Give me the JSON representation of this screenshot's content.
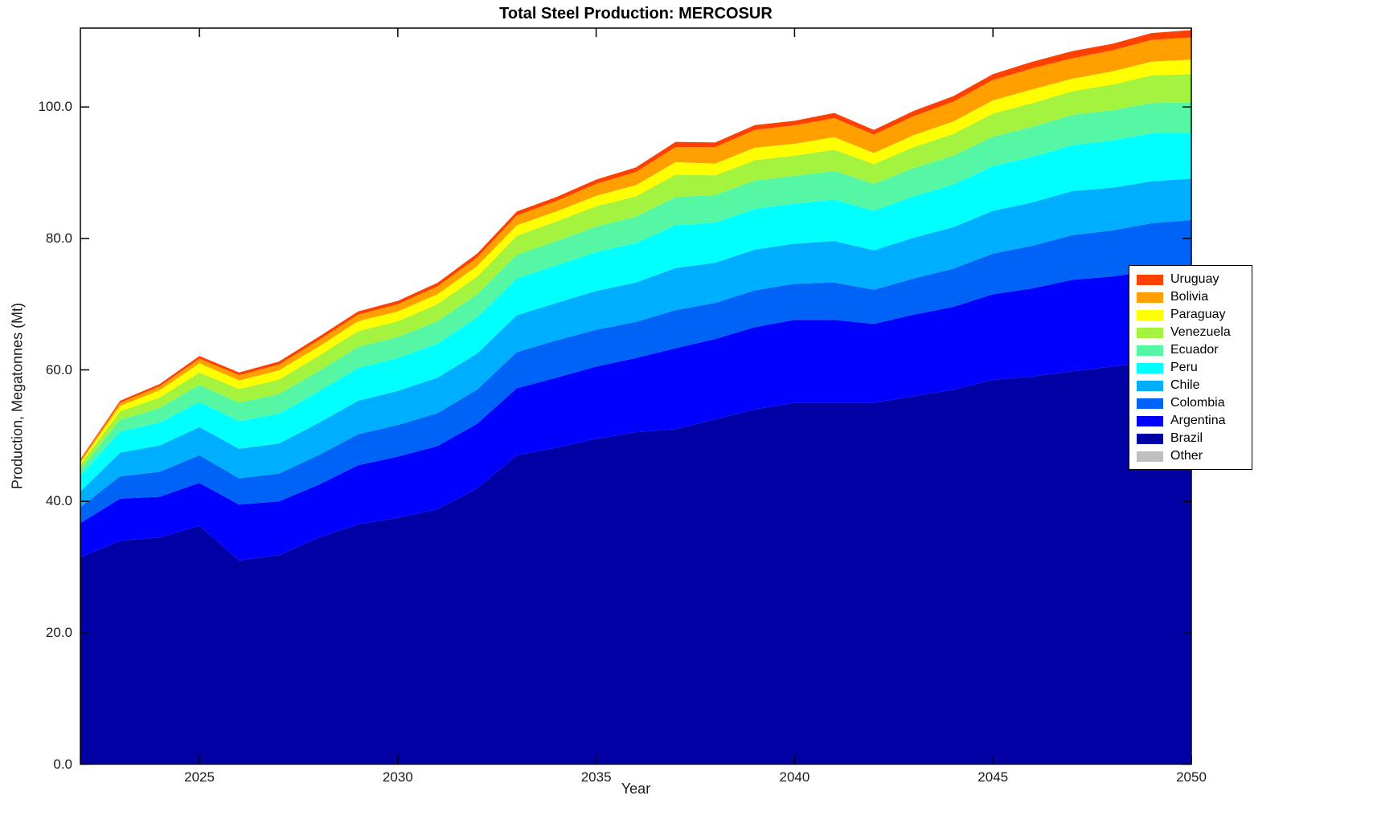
{
  "figure": {
    "title": "Total Steel Production: MERCOSUR"
  },
  "chart_data": {
    "type": "area",
    "stacked": true,
    "title": "Total Steel Production: MERCOSUR",
    "xlabel": "Year",
    "ylabel": "Production, Megatonnes (Mt)",
    "grid": false,
    "legend_position": "right-outside",
    "x_range": [
      2022,
      2050
    ],
    "y_range": [
      0,
      112
    ],
    "x": [
      2022,
      2023,
      2024,
      2025,
      2026,
      2027,
      2028,
      2029,
      2030,
      2031,
      2032,
      2033,
      2034,
      2035,
      2036,
      2037,
      2038,
      2039,
      2040,
      2041,
      2042,
      2043,
      2044,
      2045,
      2046,
      2047,
      2048,
      2049,
      2050
    ],
    "x_ticks": [
      {
        "v": 2025,
        "label": "2025"
      },
      {
        "v": 2030,
        "label": "2030"
      },
      {
        "v": 2035,
        "label": "2035"
      },
      {
        "v": 2040,
        "label": "2040"
      },
      {
        "v": 2045,
        "label": "2045"
      },
      {
        "v": 2050,
        "label": "2050"
      }
    ],
    "y_ticks": [
      {
        "v": 0,
        "label": "0.0"
      },
      {
        "v": 20,
        "label": "20.0"
      },
      {
        "v": 40,
        "label": "40.0"
      },
      {
        "v": 60,
        "label": "60.0"
      },
      {
        "v": 80,
        "label": "80.0"
      },
      {
        "v": 100,
        "label": "100.0"
      }
    ],
    "stack_note": "series are stacked bottom-to-top in reverse of the listed (legend) order; legend lists top series first",
    "series": [
      {
        "name": "Uruguay",
        "color": "#FF4000",
        "values": [
          0.2,
          0.3,
          0.35,
          0.4,
          0.4,
          0.45,
          0.5,
          0.5,
          0.5,
          0.55,
          0.6,
          0.6,
          0.6,
          0.65,
          0.7,
          0.8,
          0.7,
          0.75,
          0.7,
          0.8,
          0.7,
          0.8,
          0.85,
          0.9,
          1.0,
          1.1,
          1.0,
          1.05,
          1.1
        ]
      },
      {
        "name": "Bolivia",
        "color": "#FFA000",
        "values": [
          0.3,
          0.5,
          0.6,
          0.7,
          0.8,
          0.9,
          1.0,
          1.0,
          1.1,
          1.2,
          1.3,
          1.5,
          1.6,
          1.8,
          2.0,
          2.3,
          2.5,
          2.7,
          2.8,
          2.9,
          2.8,
          2.9,
          3.0,
          3.1,
          3.2,
          3.1,
          3.2,
          3.3,
          3.4
        ]
      },
      {
        "name": "Paraguay",
        "color": "#FFFF00",
        "values": [
          0.3,
          0.8,
          1.1,
          1.4,
          1.3,
          1.4,
          1.4,
          1.5,
          1.5,
          1.5,
          1.6,
          1.6,
          1.5,
          1.6,
          1.7,
          1.9,
          1.8,
          1.9,
          1.8,
          1.9,
          1.7,
          1.8,
          1.9,
          2.0,
          2.1,
          1.9,
          2.0,
          2.1,
          2.2
        ]
      },
      {
        "name": "Venezuela",
        "color": "#A4F43F",
        "values": [
          0.7,
          1.3,
          1.6,
          1.9,
          2.1,
          2.2,
          2.3,
          2.4,
          2.4,
          2.6,
          2.7,
          2.9,
          3.0,
          3.1,
          3.1,
          3.4,
          3.0,
          3.1,
          3.1,
          3.2,
          3.0,
          3.2,
          3.3,
          3.5,
          3.6,
          3.6,
          3.9,
          4.2,
          4.3
        ]
      },
      {
        "name": "Ecuador",
        "color": "#55F7A4",
        "values": [
          1.0,
          1.8,
          2.2,
          2.6,
          2.8,
          3.0,
          3.1,
          3.2,
          3.2,
          3.4,
          3.5,
          3.6,
          3.7,
          3.9,
          4.0,
          4.3,
          4.2,
          4.3,
          4.2,
          4.4,
          4.1,
          4.3,
          4.4,
          4.5,
          4.6,
          4.6,
          4.6,
          4.6,
          4.6
        ]
      },
      {
        "name": "Peru",
        "color": "#00FFFF",
        "values": [
          2.4,
          3.2,
          3.5,
          3.8,
          4.2,
          4.5,
          4.8,
          5.0,
          5.0,
          5.2,
          5.5,
          5.6,
          5.7,
          5.9,
          6.0,
          6.5,
          6.1,
          6.2,
          6.1,
          6.3,
          6.0,
          6.3,
          6.5,
          6.8,
          6.9,
          7.0,
          7.2,
          7.3,
          7.0
        ]
      },
      {
        "name": "Chile",
        "color": "#00AEFF",
        "values": [
          2.4,
          3.6,
          4.0,
          4.3,
          4.5,
          4.6,
          4.9,
          5.1,
          5.2,
          5.4,
          5.5,
          5.6,
          5.7,
          5.9,
          6.0,
          6.4,
          6.1,
          6.2,
          6.1,
          6.3,
          6.0,
          6.2,
          6.3,
          6.5,
          6.6,
          6.7,
          6.5,
          6.4,
          6.3
        ]
      },
      {
        "name": "Colombia",
        "color": "#0063F7",
        "values": [
          2.4,
          3.4,
          3.8,
          4.2,
          4.0,
          4.2,
          4.5,
          4.7,
          4.8,
          5.0,
          5.2,
          5.5,
          5.7,
          5.6,
          5.5,
          5.8,
          5.5,
          5.6,
          5.5,
          5.7,
          5.2,
          5.5,
          5.8,
          6.2,
          6.5,
          6.8,
          7.0,
          7.2,
          7.4
        ]
      },
      {
        "name": "Argentina",
        "color": "#0000FF",
        "values": [
          5.2,
          6.4,
          6.2,
          6.5,
          8.5,
          8.2,
          8.0,
          9.0,
          9.3,
          9.6,
          9.8,
          10.2,
          10.6,
          11.0,
          11.3,
          12.3,
          12.2,
          12.5,
          12.6,
          12.6,
          12.0,
          12.4,
          12.6,
          13.0,
          13.4,
          13.9,
          13.7,
          13.8,
          13.9
        ]
      },
      {
        "name": "Brazil",
        "color": "#0000A5",
        "values": [
          31.5,
          34.0,
          34.5,
          36.3,
          31.0,
          31.8,
          34.5,
          36.5,
          37.5,
          38.8,
          42.0,
          47.0,
          48.2,
          49.5,
          50.5,
          51.0,
          52.5,
          54.0,
          55.0,
          55.0,
          55.0,
          56.0,
          57.0,
          58.5,
          59.0,
          59.8,
          60.5,
          61.3,
          61.5
        ]
      },
      {
        "name": "Other",
        "color": "#BFBFBF",
        "values": [
          0,
          0,
          0,
          0,
          0,
          0,
          0,
          0,
          0,
          0,
          0,
          0,
          0,
          0,
          0,
          0,
          0,
          0,
          0,
          0,
          0,
          0,
          0,
          0,
          0,
          0,
          0,
          0,
          0
        ]
      }
    ]
  }
}
